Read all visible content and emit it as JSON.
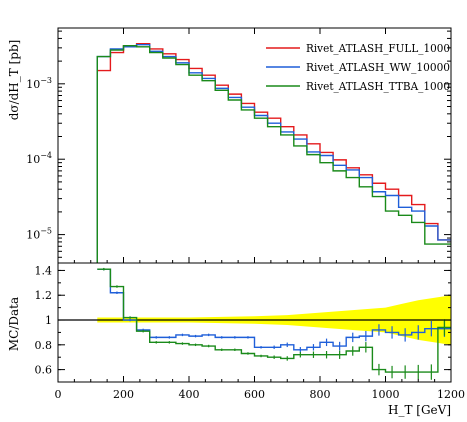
{
  "chart_data": {
    "type": "line",
    "subtype": "histogram-with-ratio",
    "main": {
      "ylabel": "dσ/dH_T [pb]",
      "yscale": "log",
      "ylim": [
        4.2e-06,
        0.0055
      ],
      "yticks": [
        {
          "value": 0.001,
          "base": "10",
          "exp": "−3"
        },
        {
          "value": 0.0001,
          "base": "10",
          "exp": "−4"
        },
        {
          "value": 1e-05,
          "base": "10",
          "exp": "−5"
        }
      ]
    },
    "ratio": {
      "ylabel": "MC/Data",
      "ylim": [
        0.5,
        1.46
      ],
      "yticks": [
        "0.6",
        "0.8",
        "1",
        "1.2",
        "1.4"
      ],
      "band": {
        "color": "#ffff00",
        "x": [
          120,
          160,
          220,
          300,
          400,
          500,
          600,
          700,
          800,
          900,
          1000,
          1050,
          1100,
          1150,
          1200
        ],
        "half_width": [
          0.02,
          0.02,
          0.02,
          0.02,
          0.02,
          0.025,
          0.03,
          0.04,
          0.06,
          0.08,
          0.1,
          0.13,
          0.16,
          0.18,
          0.2
        ]
      }
    },
    "xlabel": "H_T [GeV]",
    "xlim": [
      0,
      1200
    ],
    "xticks": [
      "0",
      "200",
      "400",
      "600",
      "800",
      "1000",
      "1200"
    ],
    "bin_edges": [
      120,
      160,
      200,
      240,
      280,
      320,
      360,
      400,
      440,
      480,
      520,
      560,
      600,
      640,
      680,
      720,
      760,
      800,
      840,
      880,
      920,
      960,
      1000,
      1040,
      1080,
      1120,
      1160,
      1200
    ],
    "series": [
      {
        "name": "Rivet_ATLASH_FULL_1000",
        "color": "#e41a1c",
        "values": [
          0.0015,
          0.0026,
          0.0032,
          0.0034,
          0.0029,
          0.0025,
          0.0021,
          0.0016,
          0.0013,
          0.00096,
          0.00073,
          0.00055,
          0.00042,
          0.00035,
          0.00027,
          0.00021,
          0.00016,
          0.000123,
          9.8e-05,
          7.7e-05,
          6.2e-05,
          4.8e-05,
          4e-05,
          3.3e-05,
          2.5e-05,
          1.4e-05,
          8.5e-06
        ],
        "ratio": [
          null,
          null,
          null,
          null,
          null,
          null,
          null,
          null,
          null,
          null,
          null,
          null,
          null,
          null,
          null,
          null,
          null,
          null,
          null,
          null,
          null,
          null,
          null,
          null,
          null,
          null,
          null
        ]
      },
      {
        "name": "Rivet_ATLASH_WW_10000",
        "color": "#1f5fd9",
        "values": [
          0.0023,
          0.0029,
          0.0031,
          0.0033,
          0.0027,
          0.0023,
          0.0019,
          0.0014,
          0.00118,
          0.00087,
          0.00066,
          0.00049,
          0.00038,
          0.0003,
          0.00023,
          0.000185,
          0.000125,
          0.000112,
          8.3e-05,
          7.2e-05,
          5.7e-05,
          3.7e-05,
          3.3e-05,
          2.3e-05,
          2.05e-05,
          1.3e-05,
          8.5e-06
        ],
        "ratio": [
          1.41,
          1.22,
          1.0,
          0.92,
          0.86,
          0.86,
          0.88,
          0.87,
          0.88,
          0.86,
          0.86,
          0.86,
          0.78,
          0.78,
          0.8,
          0.76,
          0.78,
          0.82,
          0.79,
          0.86,
          0.87,
          0.92,
          0.9,
          0.88,
          0.9,
          0.93,
          0.93
        ]
      },
      {
        "name": "Rivet_ATLASH_TTBA_1000",
        "color": "#1a8a1a",
        "values": [
          0.0023,
          0.0028,
          0.0032,
          0.0031,
          0.0026,
          0.0022,
          0.0018,
          0.0013,
          0.0011,
          0.00082,
          0.00061,
          0.00045,
          0.00035,
          0.00027,
          0.00021,
          0.00015,
          0.000115,
          9e-05,
          7e-05,
          5.7e-05,
          4.3e-05,
          3.2e-05,
          2.05e-05,
          1.8e-05,
          1.45e-05,
          7.5e-06,
          7.5e-06
        ],
        "ratio": [
          1.41,
          1.27,
          1.02,
          0.91,
          0.82,
          0.82,
          0.81,
          0.8,
          0.79,
          0.76,
          0.76,
          0.73,
          0.71,
          0.7,
          0.69,
          0.72,
          0.72,
          0.72,
          0.72,
          0.75,
          0.78,
          0.6,
          0.58,
          0.58,
          0.58,
          0.58,
          0.94
        ]
      }
    ],
    "legend_position": "top-right"
  }
}
